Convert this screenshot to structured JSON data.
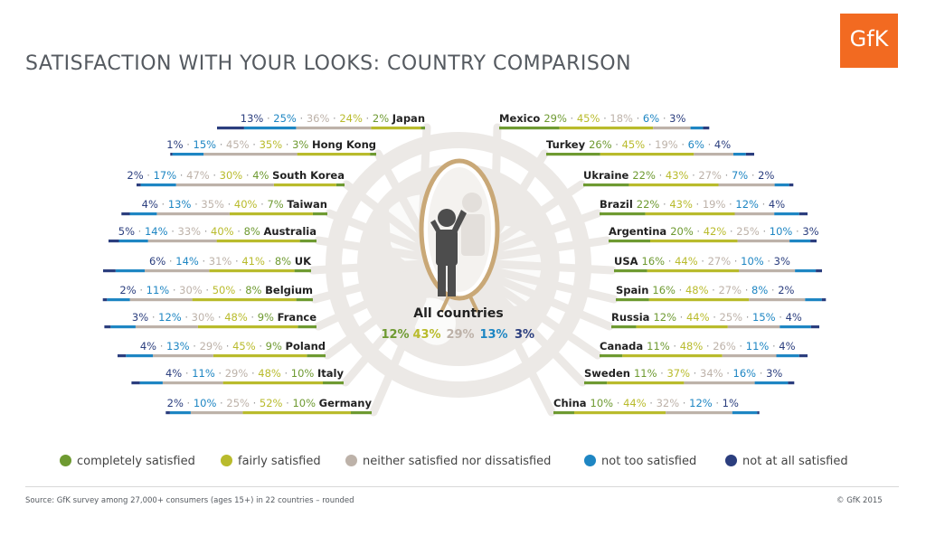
{
  "title": "SATISFACTION WITH YOUR LOOKS: COUNTRY COMPARISON",
  "logo_text": "GfK",
  "source": "Source: GfK survey among 27,000+ consumers (ages 15+) in 22 countries – rounded",
  "copyright": "© GfK 2015",
  "colors": {
    "completely": "#6e9a31",
    "fairly": "#b9bb2c",
    "neither": "#bdb2a9",
    "not_too": "#1e86c3",
    "not_at_all": "#2b3e7e",
    "bg_shape": "#ece9e6"
  },
  "legend": [
    {
      "label": "completely satisfied",
      "color": "#6e9a31"
    },
    {
      "label": "fairly satisfied",
      "color": "#b9bb2c"
    },
    {
      "label": "neither satisfied nor dissatisfied",
      "color": "#bdb2a9"
    },
    {
      "label": "not too satisfied",
      "color": "#1e86c3"
    },
    {
      "label": "not at all satisfied",
      "color": "#2b3e7e"
    }
  ],
  "chart_data": {
    "type": "bar",
    "unit": "%",
    "series_order": [
      "completely satisfied",
      "fairly satisfied",
      "neither satisfied nor dissatisfied",
      "not too satisfied",
      "not at all satisfied"
    ],
    "all_countries": {
      "label": "All countries",
      "values": [
        12,
        43,
        29,
        13,
        3
      ]
    },
    "left": [
      {
        "country": "Japan",
        "values": [
          2,
          24,
          36,
          25,
          13
        ]
      },
      {
        "country": "Hong Kong",
        "values": [
          3,
          35,
          45,
          15,
          1
        ]
      },
      {
        "country": "South Korea",
        "values": [
          4,
          30,
          47,
          17,
          2
        ]
      },
      {
        "country": "Taiwan",
        "values": [
          7,
          40,
          35,
          13,
          4
        ]
      },
      {
        "country": "Australia",
        "values": [
          8,
          40,
          33,
          14,
          5
        ]
      },
      {
        "country": "UK",
        "values": [
          8,
          41,
          31,
          14,
          6
        ]
      },
      {
        "country": "Belgium",
        "values": [
          8,
          50,
          30,
          11,
          2
        ]
      },
      {
        "country": "France",
        "values": [
          9,
          48,
          30,
          12,
          3
        ]
      },
      {
        "country": "Poland",
        "values": [
          9,
          45,
          29,
          13,
          4
        ]
      },
      {
        "country": "Italy",
        "values": [
          10,
          48,
          29,
          11,
          4
        ]
      },
      {
        "country": "Germany",
        "values": [
          10,
          52,
          25,
          10,
          2
        ]
      }
    ],
    "right": [
      {
        "country": "Mexico",
        "values": [
          29,
          45,
          18,
          6,
          3
        ]
      },
      {
        "country": "Turkey",
        "values": [
          26,
          45,
          19,
          6,
          4
        ]
      },
      {
        "country": "Ukraine",
        "values": [
          22,
          43,
          27,
          7,
          2
        ]
      },
      {
        "country": "Brazil",
        "values": [
          22,
          43,
          19,
          12,
          4
        ]
      },
      {
        "country": "Argentina",
        "values": [
          20,
          42,
          25,
          10,
          3
        ]
      },
      {
        "country": "USA",
        "values": [
          16,
          44,
          27,
          10,
          3
        ]
      },
      {
        "country": "Spain",
        "values": [
          16,
          48,
          27,
          8,
          2
        ]
      },
      {
        "country": "Russia",
        "values": [
          12,
          44,
          25,
          15,
          4
        ]
      },
      {
        "country": "Canada",
        "values": [
          11,
          48,
          26,
          11,
          4
        ]
      },
      {
        "country": "Sweden",
        "values": [
          11,
          37,
          34,
          16,
          3
        ]
      },
      {
        "country": "China",
        "values": [
          10,
          44,
          32,
          12,
          1
        ]
      }
    ]
  }
}
